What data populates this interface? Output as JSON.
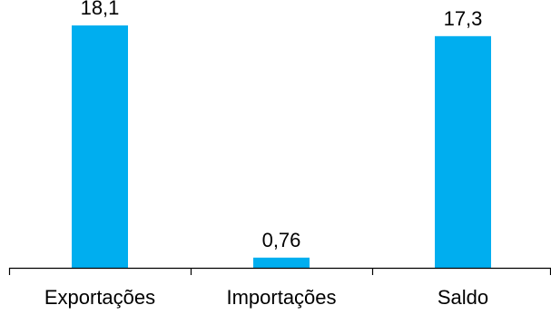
{
  "chart_data": {
    "type": "bar",
    "categories": [
      "Exportações",
      "Importações",
      "Saldo"
    ],
    "values": [
      18.1,
      0.76,
      17.3
    ],
    "data_labels": [
      "18,1",
      "0,76",
      "17,3"
    ],
    "ylim": [
      0,
      20
    ],
    "grid": false,
    "legend": "none",
    "colors": {
      "bar": "#00AEEF",
      "axis": "#000000",
      "text": "#000000"
    }
  }
}
